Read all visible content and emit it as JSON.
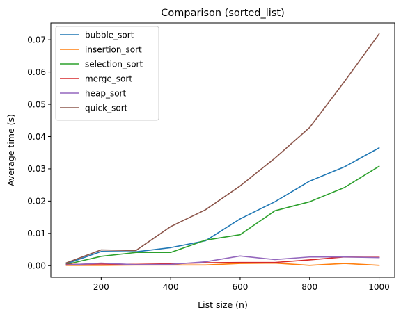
{
  "chart_data": {
    "type": "line",
    "title": "Comparison (sorted_list)",
    "xlabel": "List size (n)",
    "ylabel": "Average time (s)",
    "xlim": [
      55,
      1045
    ],
    "ylim": [
      -0.0036,
      0.0752
    ],
    "x_ticks": [
      200,
      400,
      600,
      800,
      1000
    ],
    "x_tick_labels": [
      "200",
      "400",
      "600",
      "800",
      "1000"
    ],
    "y_ticks": [
      0.0,
      0.01,
      0.02,
      0.03,
      0.04,
      0.05,
      0.06,
      0.07
    ],
    "y_tick_labels": [
      "0.00",
      "0.01",
      "0.02",
      "0.03",
      "0.04",
      "0.05",
      "0.06",
      "0.07"
    ],
    "grid": false,
    "legend_position": "top-left",
    "x": [
      100,
      200,
      300,
      400,
      500,
      600,
      700,
      800,
      900,
      1000
    ],
    "series": [
      {
        "name": "bubble_sort",
        "color": "#1f77b4",
        "values": [
          0.0006,
          0.0044,
          0.0043,
          0.0056,
          0.0077,
          0.0145,
          0.0198,
          0.0262,
          0.0306,
          0.0365
        ]
      },
      {
        "name": "insertion_sort",
        "color": "#ff7f0e",
        "values": [
          0.0001,
          0.0001,
          0.0002,
          0.0002,
          0.0002,
          0.0007,
          0.0008,
          0.0001,
          0.0007,
          0.0001
        ]
      },
      {
        "name": "selection_sort",
        "color": "#2ca02c",
        "values": [
          0.0004,
          0.0029,
          0.0041,
          0.0041,
          0.0079,
          0.0096,
          0.017,
          0.0198,
          0.0242,
          0.0308
        ]
      },
      {
        "name": "merge_sort",
        "color": "#d62728",
        "values": [
          0.0004,
          0.0005,
          0.0004,
          0.0006,
          0.0009,
          0.001,
          0.001,
          0.0018,
          0.0027,
          0.0026
        ]
      },
      {
        "name": "heap_sort",
        "color": "#9467bd",
        "values": [
          0.0002,
          0.0008,
          0.0003,
          0.0004,
          0.0012,
          0.003,
          0.0019,
          0.0027,
          0.0027,
          0.0025
        ]
      },
      {
        "name": "quick_sort",
        "color": "#8c564b",
        "values": [
          0.0009,
          0.0049,
          0.0047,
          0.0121,
          0.0173,
          0.0247,
          0.0333,
          0.0428,
          0.057,
          0.0718
        ]
      }
    ]
  }
}
